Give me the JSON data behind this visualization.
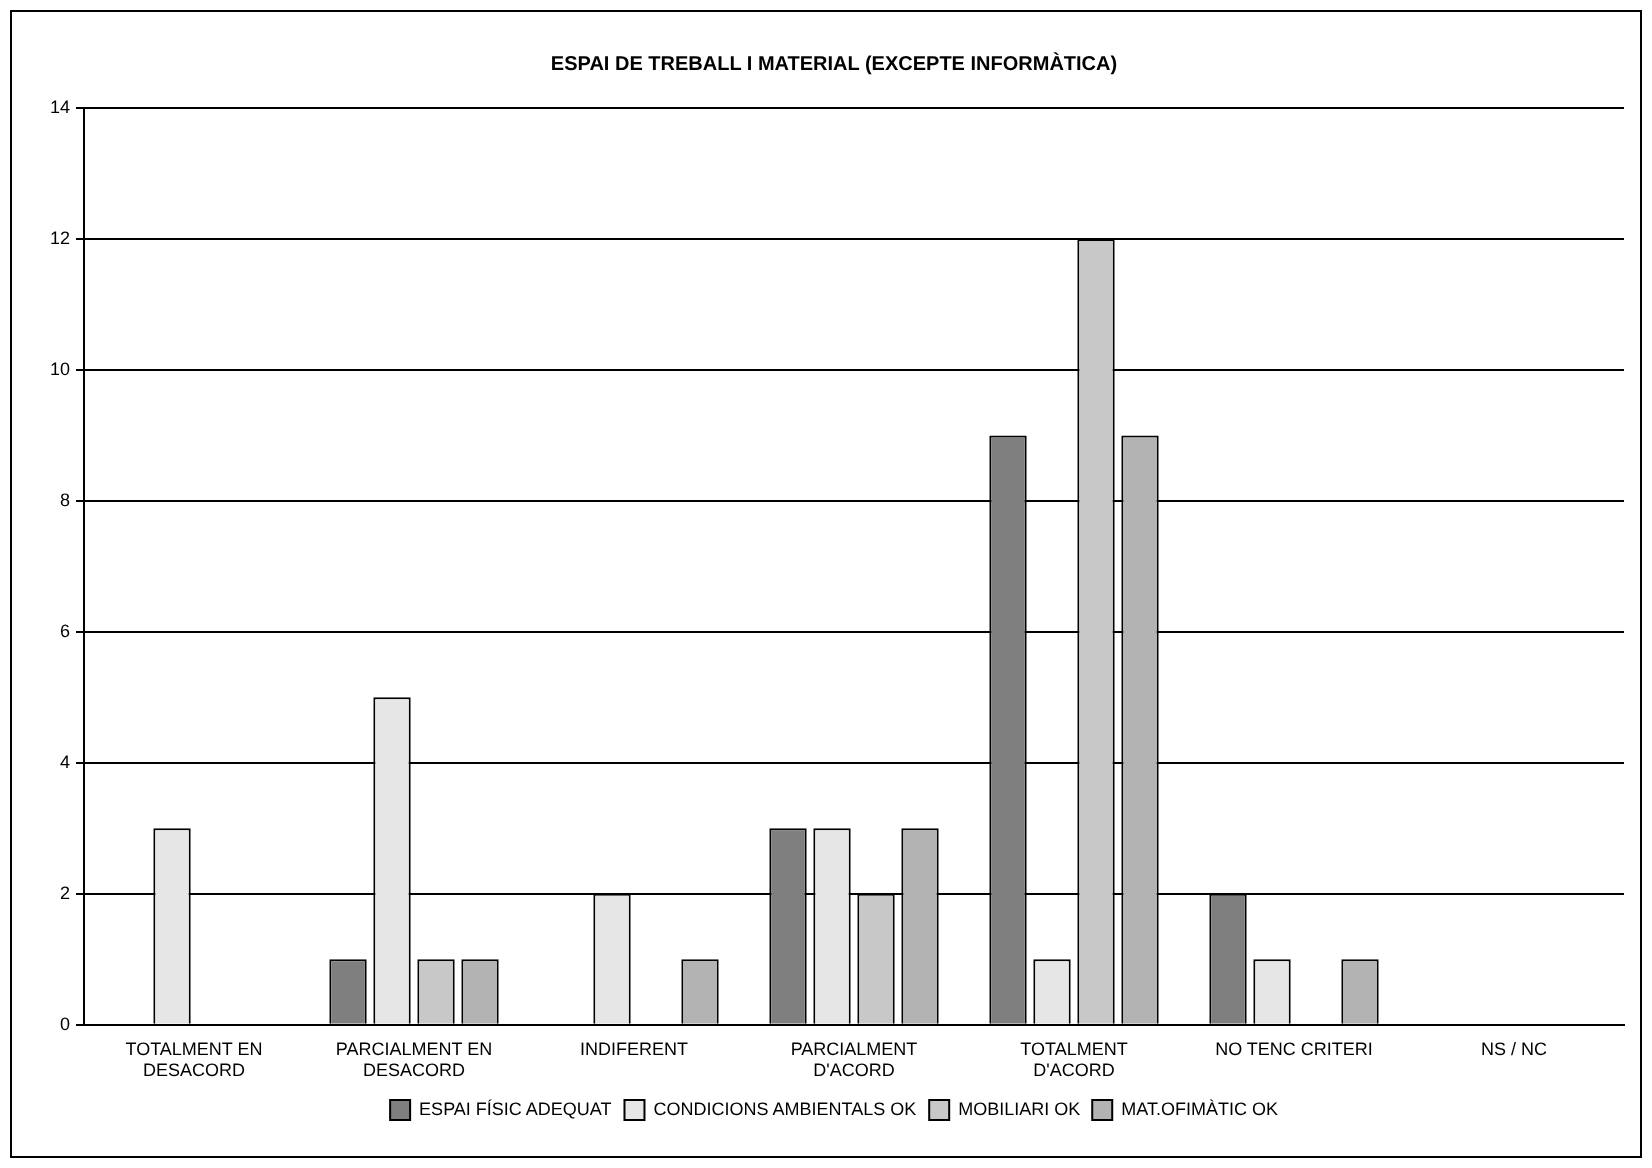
{
  "chart_data": {
    "type": "bar",
    "title": "ESPAI DE TREBALL I MATERIAL (EXCEPTE INFORMÀTICA)",
    "categories": [
      "TOTALMENT EN DESACORD",
      "PARCIALMENT EN DESACORD",
      "INDIFERENT",
      "PARCIALMENT D'ACORD",
      "TOTALMENT D'ACORD",
      "NO TENC CRITERI",
      "NS / NC"
    ],
    "series": [
      {
        "name": "ESPAI FÍSIC ADEQUAT",
        "color": "#7f7f7f",
        "values": [
          0,
          1,
          0,
          3,
          9,
          2,
          0
        ]
      },
      {
        "name": "CONDICIONS AMBIENTALS OK",
        "color": "#e6e6e6",
        "values": [
          3,
          5,
          2,
          3,
          1,
          1,
          0
        ]
      },
      {
        "name": "MOBILIARI OK",
        "color": "#c8c8c8",
        "values": [
          0,
          1,
          0,
          2,
          12,
          0,
          0
        ]
      },
      {
        "name": "MAT.OFIMÀTIC OK",
        "color": "#b3b3b3",
        "values": [
          0,
          1,
          1,
          3,
          9,
          1,
          0
        ]
      }
    ],
    "ylim": [
      0,
      14
    ],
    "yticks": [
      0,
      2,
      4,
      6,
      8,
      10,
      12,
      14
    ],
    "grid": "y",
    "legend": "bottom"
  }
}
